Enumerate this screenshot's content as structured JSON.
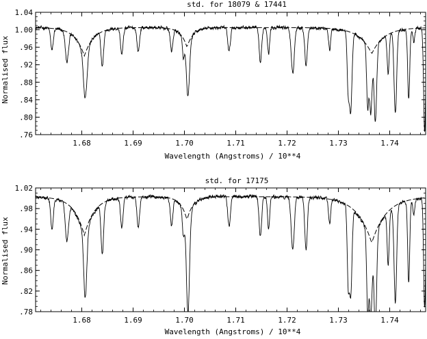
{
  "chart_data": [
    {
      "type": "line",
      "title": "std. for 18079 & 17441",
      "xlabel": "Wavelength (Angstroms) / 10**4",
      "ylabel": "Normalised flux",
      "xlim": [
        1.671,
        1.747
      ],
      "ylim": [
        0.76,
        1.04
      ],
      "x_ticks": [
        1.68,
        1.69,
        1.7,
        1.71,
        1.72,
        1.73,
        1.74
      ],
      "x_tick_labels": [
        "1.68",
        "1.69",
        "1.70",
        "1.71",
        "1.72",
        "1.73",
        "1.74"
      ],
      "y_ticks": [
        0.76,
        0.8,
        0.84,
        0.88,
        0.92,
        0.96,
        1.0,
        1.04
      ],
      "y_tick_labels": [
        ".76",
        ".80",
        ".84",
        ".88",
        ".92",
        ".96",
        "1.00",
        "1.04"
      ],
      "grid": false,
      "continuum": 1.005,
      "noise": 0.006,
      "series": [
        {
          "style": "solid",
          "lines": [
            [
              1.6742,
              0.955,
              0.00025
            ],
            [
              1.6771,
              0.935,
              0.0003
            ],
            [
              1.6807,
              0.905,
              0.00035
            ],
            [
              1.684,
              0.925,
              0.00025
            ],
            [
              1.6878,
              0.945,
              0.00025
            ],
            [
              1.691,
              0.95,
              0.00025
            ],
            [
              1.6975,
              0.955,
              0.00025
            ],
            [
              1.6998,
              0.96,
              0.0002
            ],
            [
              1.7007,
              0.885,
              0.0003
            ],
            [
              1.7087,
              0.95,
              0.00025
            ],
            [
              1.7148,
              0.925,
              0.00025
            ],
            [
              1.7164,
              0.945,
              0.0002
            ],
            [
              1.7211,
              0.9,
              0.0003
            ],
            [
              1.7237,
              0.92,
              0.00025
            ],
            [
              1.7283,
              0.955,
              0.0002
            ],
            [
              1.7319,
              0.88,
              0.0002
            ],
            [
              1.7324,
              0.825,
              0.00025
            ],
            [
              1.7357,
              0.87,
              0.0002
            ],
            [
              1.7363,
              0.865,
              0.00025
            ],
            [
              1.7372,
              0.835,
              0.00025
            ],
            [
              1.7397,
              0.915,
              0.0002
            ],
            [
              1.7411,
              0.815,
              0.00025
            ],
            [
              1.7437,
              0.845,
              0.0002
            ],
            [
              1.7447,
              0.975,
              0.0002
            ],
            [
              1.7468,
              0.77,
              0.0002
            ]
          ],
          "broad": [
            [
              1.6805,
              0.065,
              0.0018
            ],
            [
              1.7005,
              0.045,
              0.0012
            ],
            [
              1.7365,
              0.06,
              0.0024
            ]
          ]
        },
        {
          "style": "dashed",
          "broad": [
            [
              1.6805,
              0.065,
              0.0018
            ],
            [
              1.7005,
              0.045,
              0.0012
            ],
            [
              1.7365,
              0.06,
              0.0024
            ]
          ]
        }
      ]
    },
    {
      "type": "line",
      "title": "std. for 17175",
      "xlabel": "Wavelength (Angstroms) / 10**4",
      "ylabel": "Normalised flux",
      "xlim": [
        1.671,
        1.747
      ],
      "ylim": [
        0.78,
        1.02
      ],
      "x_ticks": [
        1.68,
        1.69,
        1.7,
        1.71,
        1.72,
        1.73,
        1.74
      ],
      "x_tick_labels": [
        "1.68",
        "1.69",
        "1.70",
        "1.71",
        "1.72",
        "1.73",
        "1.74"
      ],
      "y_ticks": [
        0.78,
        0.82,
        0.86,
        0.9,
        0.94,
        0.98,
        1.02
      ],
      "y_tick_labels": [
        ".78",
        ".82",
        ".86",
        ".90",
        ".94",
        ".98",
        "1.02"
      ],
      "grid": false,
      "continuum": 1.003,
      "noise": 0.005,
      "series": [
        {
          "style": "solid",
          "lines": [
            [
              1.6742,
              0.945,
              0.00025
            ],
            [
              1.6771,
              0.93,
              0.0003
            ],
            [
              1.6807,
              0.88,
              0.0003
            ],
            [
              1.684,
              0.905,
              0.00025
            ],
            [
              1.6878,
              0.945,
              0.00025
            ],
            [
              1.691,
              0.945,
              0.00025
            ],
            [
              1.6975,
              0.95,
              0.00025
            ],
            [
              1.6998,
              0.955,
              0.0002
            ],
            [
              1.7007,
              0.82,
              0.0003
            ],
            [
              1.7087,
              0.945,
              0.00025
            ],
            [
              1.7148,
              0.925,
              0.00025
            ],
            [
              1.7164,
              0.94,
              0.0002
            ],
            [
              1.7211,
              0.9,
              0.0003
            ],
            [
              1.7237,
              0.9,
              0.00025
            ],
            [
              1.7283,
              0.955,
              0.0002
            ],
            [
              1.7319,
              0.865,
              0.0002
            ],
            [
              1.7324,
              0.835,
              0.00025
            ],
            [
              1.7357,
              0.855,
              0.0002
            ],
            [
              1.7363,
              0.86,
              0.00025
            ],
            [
              1.7372,
              0.822,
              0.00025
            ],
            [
              1.7397,
              0.9,
              0.0002
            ],
            [
              1.7411,
              0.815,
              0.00025
            ],
            [
              1.7437,
              0.845,
              0.0002
            ],
            [
              1.7447,
              0.975,
              0.0002
            ],
            [
              1.7468,
              0.79,
              0.0002
            ]
          ],
          "broad": [
            [
              1.6805,
              0.08,
              0.002
            ],
            [
              1.7005,
              0.05,
              0.0012
            ],
            [
              1.7365,
              0.095,
              0.0028
            ]
          ]
        },
        {
          "style": "dashed",
          "broad": [
            [
              1.6805,
              0.075,
              0.002
            ],
            [
              1.7005,
              0.045,
              0.0012
            ],
            [
              1.7365,
              0.09,
              0.0028
            ]
          ]
        }
      ]
    }
  ]
}
